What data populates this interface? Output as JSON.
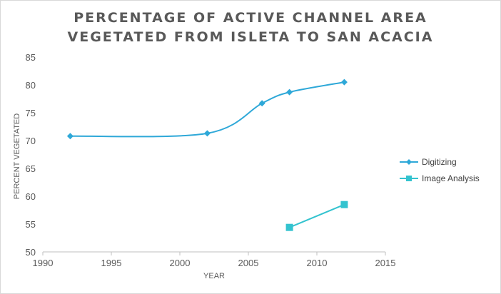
{
  "chart_data": {
    "type": "line",
    "title_lines": [
      "PERCENTAGE OF ACTIVE CHANNEL AREA",
      "VEGETATED FROM ISLETA TO SAN ACACIA"
    ],
    "xlabel": "YEAR",
    "ylabel": "PERCENT VEGETATED",
    "xlim": [
      1990,
      2015
    ],
    "ylim": [
      50,
      85
    ],
    "xticks": [
      1990,
      1995,
      2000,
      2005,
      2010,
      2015
    ],
    "yticks": [
      50,
      55,
      60,
      65,
      70,
      75,
      80,
      85
    ],
    "grid": false,
    "legend_position": "right",
    "series": [
      {
        "name": "Digitizing",
        "color": "#2ea8d8",
        "marker": "diamond",
        "smooth": true,
        "points": [
          [
            1992,
            70.8
          ],
          [
            2002,
            71.3
          ],
          [
            2006,
            76.7
          ],
          [
            2008,
            78.7
          ],
          [
            2012,
            80.5
          ]
        ]
      },
      {
        "name": "Image Analysis",
        "color": "#33c3cf",
        "marker": "square",
        "smooth": false,
        "points": [
          [
            2008,
            54.4
          ],
          [
            2012,
            58.5
          ]
        ]
      }
    ]
  }
}
